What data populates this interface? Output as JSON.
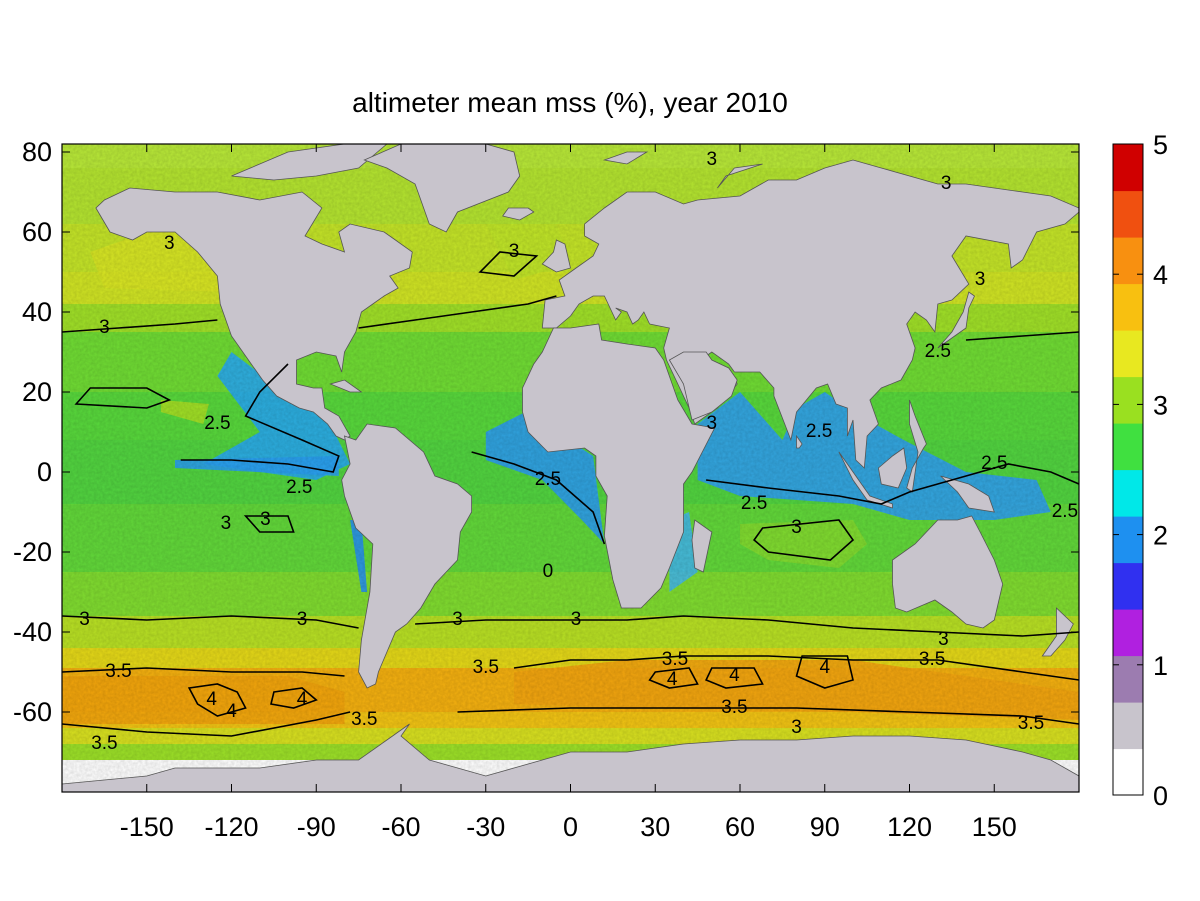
{
  "chart_data": {
    "type": "heatmap",
    "title": "altimeter mean mss (%), year 2010",
    "xlabel": "",
    "ylabel": "",
    "xlim": [
      -180,
      180
    ],
    "ylim": [
      -80,
      82
    ],
    "xticks": [
      -150,
      -120,
      -90,
      -60,
      -30,
      0,
      30,
      60,
      90,
      120,
      150
    ],
    "yticks": [
      80,
      60,
      40,
      20,
      0,
      -20,
      -40,
      -60
    ],
    "grid": false,
    "colorbar": {
      "range": [
        0,
        5
      ],
      "ticks": [
        0,
        1,
        2,
        3,
        4,
        5
      ],
      "colors": [
        "#ffffff",
        "#c8c4cc",
        "#9c7cb0",
        "#b020e0",
        "#3030f0",
        "#1e90f0",
        "#00e8e8",
        "#40e040",
        "#9ae020",
        "#e8e820",
        "#f8c010",
        "#f89010",
        "#f05010",
        "#d00000"
      ]
    },
    "land_color": "#c8c4cc",
    "contour_levels": [
      0,
      2.5,
      3,
      3.5,
      4
    ],
    "contour_labels": [
      {
        "text": "3",
        "lon": -142,
        "lat": 57
      },
      {
        "text": "3",
        "lon": -165,
        "lat": 36
      },
      {
        "text": "2.5",
        "lon": -125,
        "lat": 12
      },
      {
        "text": "2.5",
        "lon": -96,
        "lat": -4
      },
      {
        "text": "3",
        "lon": -108,
        "lat": -12
      },
      {
        "text": "3",
        "lon": -122,
        "lat": -13
      },
      {
        "text": "3",
        "lon": -20,
        "lat": 55
      },
      {
        "text": "3",
        "lon": 50,
        "lat": 78
      },
      {
        "text": "3",
        "lon": 133,
        "lat": 72
      },
      {
        "text": "3",
        "lon": 145,
        "lat": 48
      },
      {
        "text": "2.5",
        "lon": -8,
        "lat": -2
      },
      {
        "text": "0",
        "lon": -8,
        "lat": -25
      },
      {
        "text": "3",
        "lon": 50,
        "lat": 12
      },
      {
        "text": "2.5",
        "lon": 88,
        "lat": 10
      },
      {
        "text": "2.5",
        "lon": 130,
        "lat": 30
      },
      {
        "text": "2.5",
        "lon": 65,
        "lat": -8
      },
      {
        "text": "2.5",
        "lon": 150,
        "lat": 2
      },
      {
        "text": "2.5",
        "lon": 175,
        "lat": -10
      },
      {
        "text": "3",
        "lon": 80,
        "lat": -14
      },
      {
        "text": "3",
        "lon": -172,
        "lat": -37
      },
      {
        "text": "3",
        "lon": -95,
        "lat": -37
      },
      {
        "text": "3",
        "lon": -40,
        "lat": -37
      },
      {
        "text": "3",
        "lon": 2,
        "lat": -37
      },
      {
        "text": "3",
        "lon": 132,
        "lat": -42
      },
      {
        "text": "3.5",
        "lon": -160,
        "lat": -50
      },
      {
        "text": "3.5",
        "lon": -30,
        "lat": -49
      },
      {
        "text": "3.5",
        "lon": 37,
        "lat": -47
      },
      {
        "text": "3.5",
        "lon": 128,
        "lat": -47
      },
      {
        "text": "3.5",
        "lon": -73,
        "lat": -62
      },
      {
        "text": "3.5",
        "lon": 58,
        "lat": -59
      },
      {
        "text": "3.5",
        "lon": 163,
        "lat": -63
      },
      {
        "text": "3.5",
        "lon": -165,
        "lat": -68
      },
      {
        "text": "4",
        "lon": -127,
        "lat": -57
      },
      {
        "text": "4",
        "lon": -120,
        "lat": -60
      },
      {
        "text": "4",
        "lon": -95,
        "lat": -57
      },
      {
        "text": "4",
        "lon": 36,
        "lat": -52
      },
      {
        "text": "4",
        "lon": 58,
        "lat": -51
      },
      {
        "text": "4",
        "lon": 90,
        "lat": -49
      },
      {
        "text": "3",
        "lon": 80,
        "lat": -64
      }
    ]
  }
}
